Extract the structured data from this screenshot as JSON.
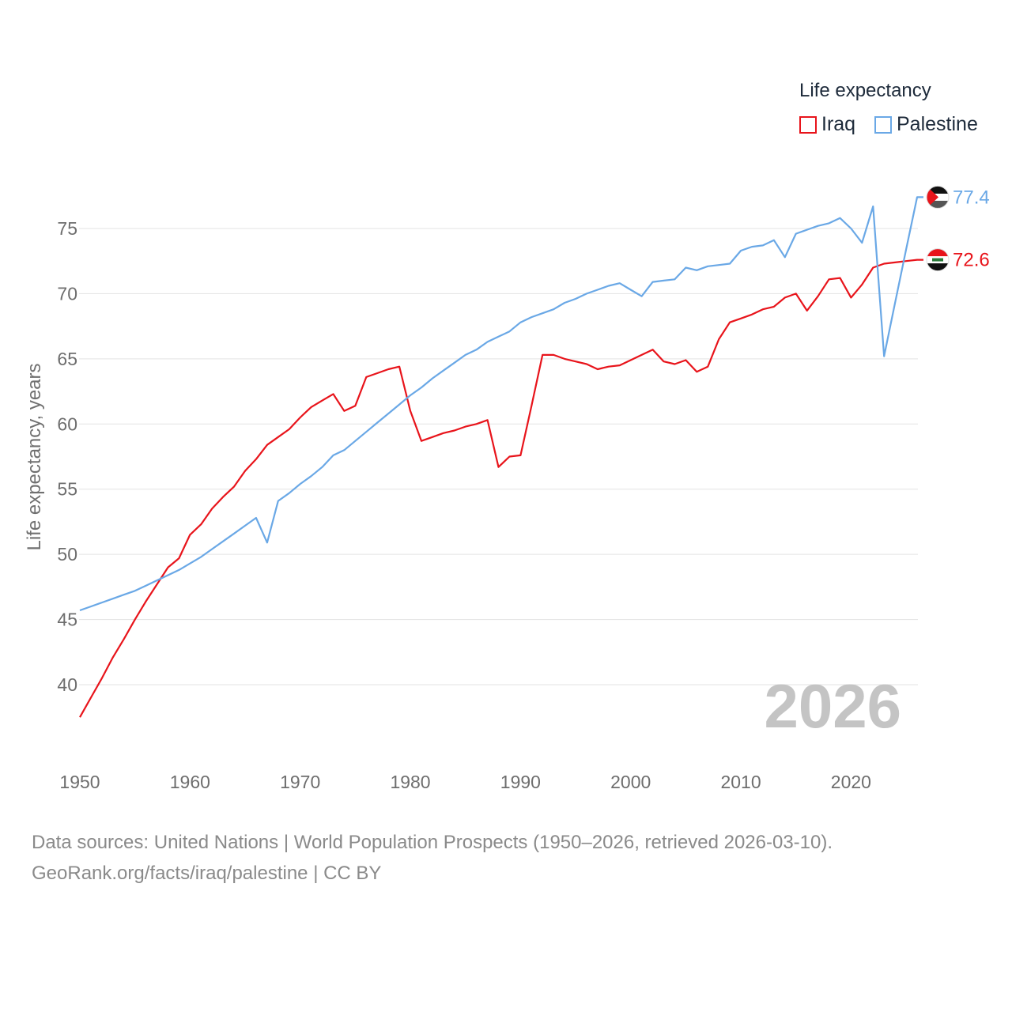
{
  "legend": {
    "title": "Life expectancy",
    "items": [
      {
        "label": "Iraq",
        "color": "#e8141b"
      },
      {
        "label": "Palestine",
        "color": "#6aa8e6"
      }
    ]
  },
  "year_label": "2026",
  "source": {
    "line1": "Data sources: United Nations | World Population Prospects (1950–2026, retrieved 2026-03-10).",
    "line2": "GeoRank.org/facts/iraq/palestine | CC BY"
  },
  "chart_data": {
    "type": "line",
    "title": "Life expectancy",
    "xlabel": "",
    "ylabel": "Life expectancy, years",
    "xlim": [
      1950,
      2026
    ],
    "ylim": [
      35,
      78
    ],
    "x_ticks": [
      1950,
      1960,
      1970,
      1980,
      1990,
      2000,
      2010,
      2020
    ],
    "y_ticks": [
      40,
      45,
      50,
      55,
      60,
      65,
      70,
      75
    ],
    "x": [
      1950,
      1951,
      1952,
      1953,
      1954,
      1955,
      1956,
      1957,
      1958,
      1959,
      1960,
      1961,
      1962,
      1963,
      1964,
      1965,
      1966,
      1967,
      1968,
      1969,
      1970,
      1971,
      1972,
      1973,
      1974,
      1975,
      1976,
      1977,
      1978,
      1979,
      1980,
      1981,
      1982,
      1983,
      1984,
      1985,
      1986,
      1987,
      1988,
      1989,
      1990,
      1991,
      1992,
      1993,
      1994,
      1995,
      1996,
      1997,
      1998,
      1999,
      2000,
      2001,
      2002,
      2003,
      2004,
      2005,
      2006,
      2007,
      2008,
      2009,
      2010,
      2011,
      2012,
      2013,
      2014,
      2015,
      2016,
      2017,
      2018,
      2019,
      2020,
      2021,
      2022,
      2023,
      2024,
      2025,
      2026
    ],
    "series": [
      {
        "name": "Iraq",
        "color": "#e8141b",
        "end_label": "72.6",
        "values": [
          37.5,
          39.0,
          40.5,
          42.1,
          43.5,
          45.0,
          46.4,
          47.7,
          49.0,
          49.7,
          51.5,
          52.3,
          53.5,
          54.4,
          55.2,
          56.4,
          57.3,
          58.4,
          59.0,
          59.6,
          60.5,
          61.3,
          61.8,
          62.3,
          61.0,
          61.4,
          63.6,
          63.9,
          64.2,
          64.4,
          61.0,
          58.7,
          59.0,
          59.3,
          59.5,
          59.8,
          60.0,
          60.3,
          56.7,
          57.5,
          57.6,
          61.4,
          65.3,
          65.3,
          65.0,
          64.8,
          64.6,
          64.2,
          64.4,
          64.5,
          64.9,
          65.3,
          65.7,
          64.8,
          64.6,
          64.9,
          64.0,
          64.4,
          66.5,
          67.8,
          68.1,
          68.4,
          68.8,
          69.0,
          69.7,
          70.0,
          68.7,
          69.8,
          71.1,
          71.2,
          69.7,
          70.7,
          72.0,
          72.3,
          72.4,
          72.5,
          72.6
        ]
      },
      {
        "name": "Palestine",
        "color": "#6aa8e6",
        "end_label": "77.4",
        "values": [
          45.7,
          46.0,
          46.3,
          46.6,
          46.9,
          47.2,
          47.6,
          48.0,
          48.4,
          48.8,
          49.3,
          49.8,
          50.4,
          51.0,
          51.6,
          52.2,
          52.8,
          50.9,
          54.1,
          54.7,
          55.4,
          56.0,
          56.7,
          57.6,
          58.0,
          58.7,
          59.4,
          60.1,
          60.8,
          61.5,
          62.2,
          62.8,
          63.5,
          64.1,
          64.7,
          65.3,
          65.7,
          66.3,
          66.7,
          67.1,
          67.8,
          68.2,
          68.5,
          68.8,
          69.3,
          69.6,
          70.0,
          70.3,
          70.6,
          70.8,
          70.3,
          69.8,
          70.9,
          71.0,
          71.1,
          72.0,
          71.8,
          72.1,
          72.2,
          72.3,
          73.3,
          73.6,
          73.7,
          74.1,
          72.8,
          74.6,
          74.9,
          75.2,
          75.4,
          75.8,
          75.0,
          73.9,
          76.7,
          65.2,
          69.3,
          73.4,
          77.4
        ]
      }
    ]
  }
}
